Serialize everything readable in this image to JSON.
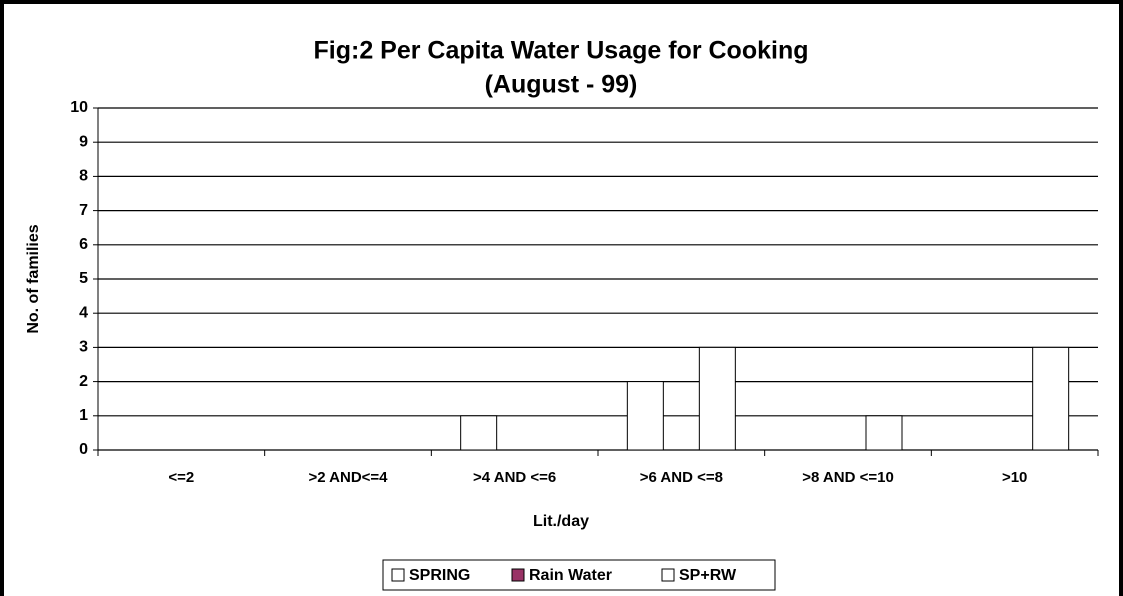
{
  "chart_data": {
    "type": "bar",
    "title": [
      "Fig:2  Per Capita Water Usage for Cooking",
      "(August - 99)"
    ],
    "x_label": "Lit./day",
    "y_label": "No. of families",
    "categories": [
      "<=2",
      ">2 AND<=4",
      ">4 AND <=6",
      ">6 AND <=8",
      ">8 AND <=10",
      ">10"
    ],
    "series": [
      {
        "name": "SPRING",
        "color": "#ffffff",
        "values": [
          0,
          0,
          1,
          2,
          0,
          0
        ]
      },
      {
        "name": "Rain Water",
        "color": "#993366",
        "values": [
          0,
          0,
          0,
          0,
          0,
          0
        ]
      },
      {
        "name": "SP+RW",
        "color": "#ffffff",
        "values": [
          0,
          0,
          0,
          3,
          1,
          3
        ]
      }
    ],
    "ylim": [
      0,
      10
    ],
    "yticks": [
      0,
      1,
      2,
      3,
      4,
      5,
      6,
      7,
      8,
      9,
      10
    ],
    "grid": true,
    "legend": "bottom"
  }
}
